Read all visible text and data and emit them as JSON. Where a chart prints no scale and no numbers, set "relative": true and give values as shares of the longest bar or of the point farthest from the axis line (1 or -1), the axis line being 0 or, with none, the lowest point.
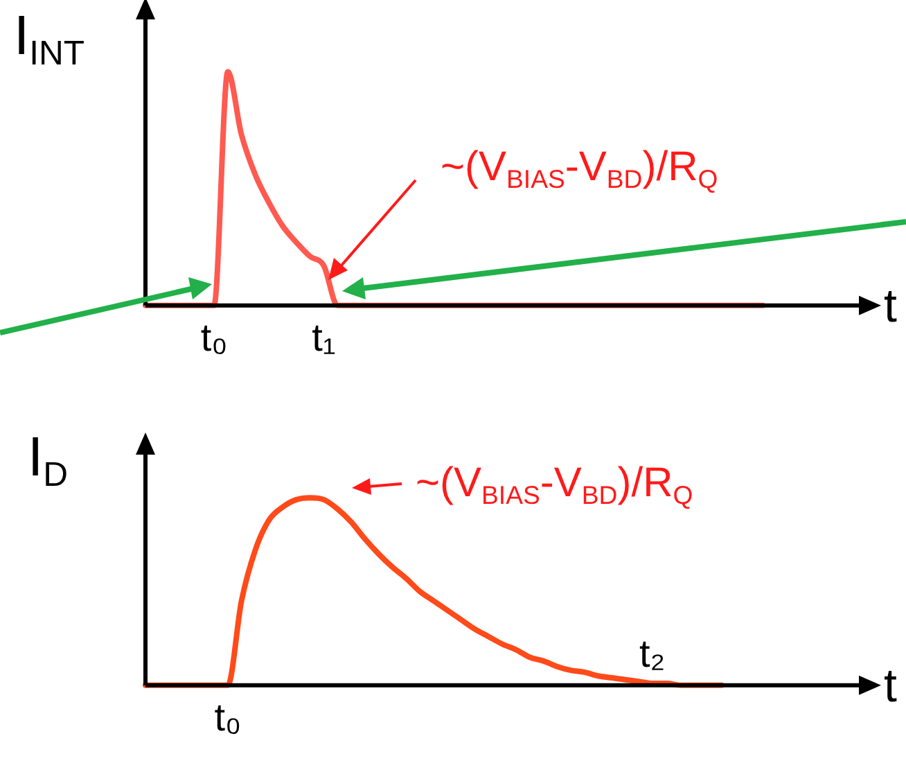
{
  "chart_data": [
    {
      "type": "line",
      "relative": true,
      "ylabel": "I$_{INT}$",
      "xlabel": "t",
      "marker": "none",
      "legend": false,
      "color": "#ff5a50",
      "categories": [
        null,
        null,
        null,
        null,
        null,
        "t₀",
        null,
        null,
        null,
        null,
        null,
        null,
        null,
        "t₁",
        null,
        null,
        null,
        null,
        null,
        null,
        null,
        null,
        null,
        null,
        null,
        null,
        null,
        null,
        null,
        null,
        null,
        null,
        null,
        null,
        null,
        null,
        null,
        null,
        null,
        null,
        null,
        null,
        null,
        null,
        null,
        null,
        null,
        null,
        null,
        null,
        null,
        null,
        null
      ],
      "values": [
        0,
        0,
        0,
        0,
        0,
        0,
        1,
        0.73,
        0.56,
        0.44,
        0.34,
        0.27,
        0.21,
        0.17,
        0,
        0,
        0,
        0,
        0,
        0,
        0,
        0,
        0,
        0,
        0,
        0,
        0,
        0,
        0,
        0,
        0,
        0,
        0,
        0,
        0,
        0,
        0,
        0,
        0,
        0,
        0,
        0,
        0,
        0,
        0,
        0,
        null,
        null,
        null,
        null,
        null,
        null,
        null
      ],
      "annotations": [
        "~(V$_{BIAS}$-V$_{BD}$)/R$_{Q}$"
      ]
    },
    {
      "type": "line",
      "relative": true,
      "ylabel": "I$_{D}$",
      "xlabel": "t",
      "marker": "none",
      "legend": false,
      "color": "#ff4a1a",
      "categories": [
        null,
        null,
        null,
        null,
        null,
        null,
        "t₀",
        null,
        null,
        null,
        null,
        null,
        null,
        null,
        null,
        null,
        null,
        null,
        null,
        null,
        null,
        null,
        null,
        null,
        null,
        null,
        null,
        null,
        null,
        null,
        null,
        null,
        null,
        null,
        null,
        null,
        null,
        "t₂",
        null,
        null,
        null,
        null,
        null,
        null,
        null,
        null,
        null,
        null,
        null,
        null,
        null,
        null,
        null
      ],
      "values": [
        0,
        0,
        0,
        0,
        0,
        0,
        0,
        0.45,
        0.72,
        0.88,
        0.95,
        0.99,
        1,
        0.99,
        0.94,
        0.87,
        0.78,
        0.7,
        0.63,
        0.57,
        0.5,
        0.45,
        0.4,
        0.35,
        0.3,
        0.26,
        0.22,
        0.19,
        0.15,
        0.13,
        0.1,
        0.08,
        0.07,
        0.05,
        0.04,
        0.03,
        0.02,
        0.01,
        0.01,
        0,
        0,
        0,
        0,
        null,
        null,
        null,
        null,
        null,
        null,
        null,
        null,
        null,
        null
      ],
      "annotations": [
        "~(V$_{BIAS}$-V$_{BD}$)/R$_{Q}$"
      ]
    }
  ]
}
